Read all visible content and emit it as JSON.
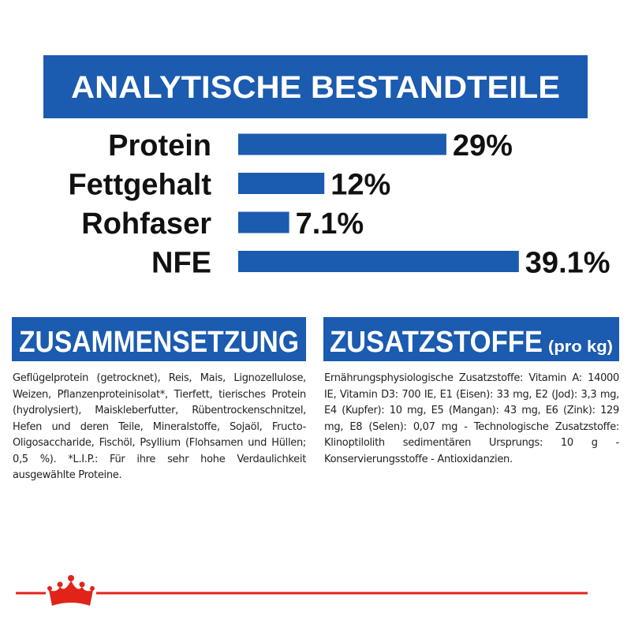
{
  "chart_data": {
    "type": "bar",
    "title": "ANALYTISCHE BESTANDTEILE",
    "categories": [
      "Protein",
      "Fettgehalt",
      "Rohfaser",
      "NFE"
    ],
    "values": [
      29,
      12,
      7.1,
      39.1
    ],
    "value_labels": [
      "29%",
      "12%",
      "7.1%",
      "39.1%"
    ],
    "color": "#1b5bb0",
    "orientation": "horizontal"
  },
  "composition": {
    "title": "ZUSAMMENSETZUNG",
    "text": "Geflügelprotein (getrocknet), Reis, Mais, Lignozellulose, Weizen, Pflanzenproteinisolat*, Tierfett, tierisches Protein (hydrolysiert), Maiskleberfutter, Rübentrockenschnitzel, Hefen und deren Teile, Mineralstoffe, Sojaöl, Fructo-Oligosaccharide, Fischöl, Psyllium (Flohsamen und Hüllen; 0,5 %). *L.I.P.: Für ihre sehr hohe Verdaulichkeit ausgewählte Proteine."
  },
  "additives": {
    "title": "ZUSATZSTOFFE",
    "unit": "(pro kg)",
    "text": "Ernährungsphysiologische Zusatzstoffe: Vitamin A: 14000 IE, Vitamin D3: 700 IE, E1 (Eisen): 33 mg, E2 (Jod): 3,3 mg, E4 (Kupfer): 10 mg, E5 (Mangan): 43 mg, E6 (Zink): 129 mg, E8 (Selen): 0,07 mg - Technologische Zusatzstoffe: Klinoptilolith sedimentären Ursprungs: 10 g - Konservierungsstoffe - Antioxidanzien."
  }
}
